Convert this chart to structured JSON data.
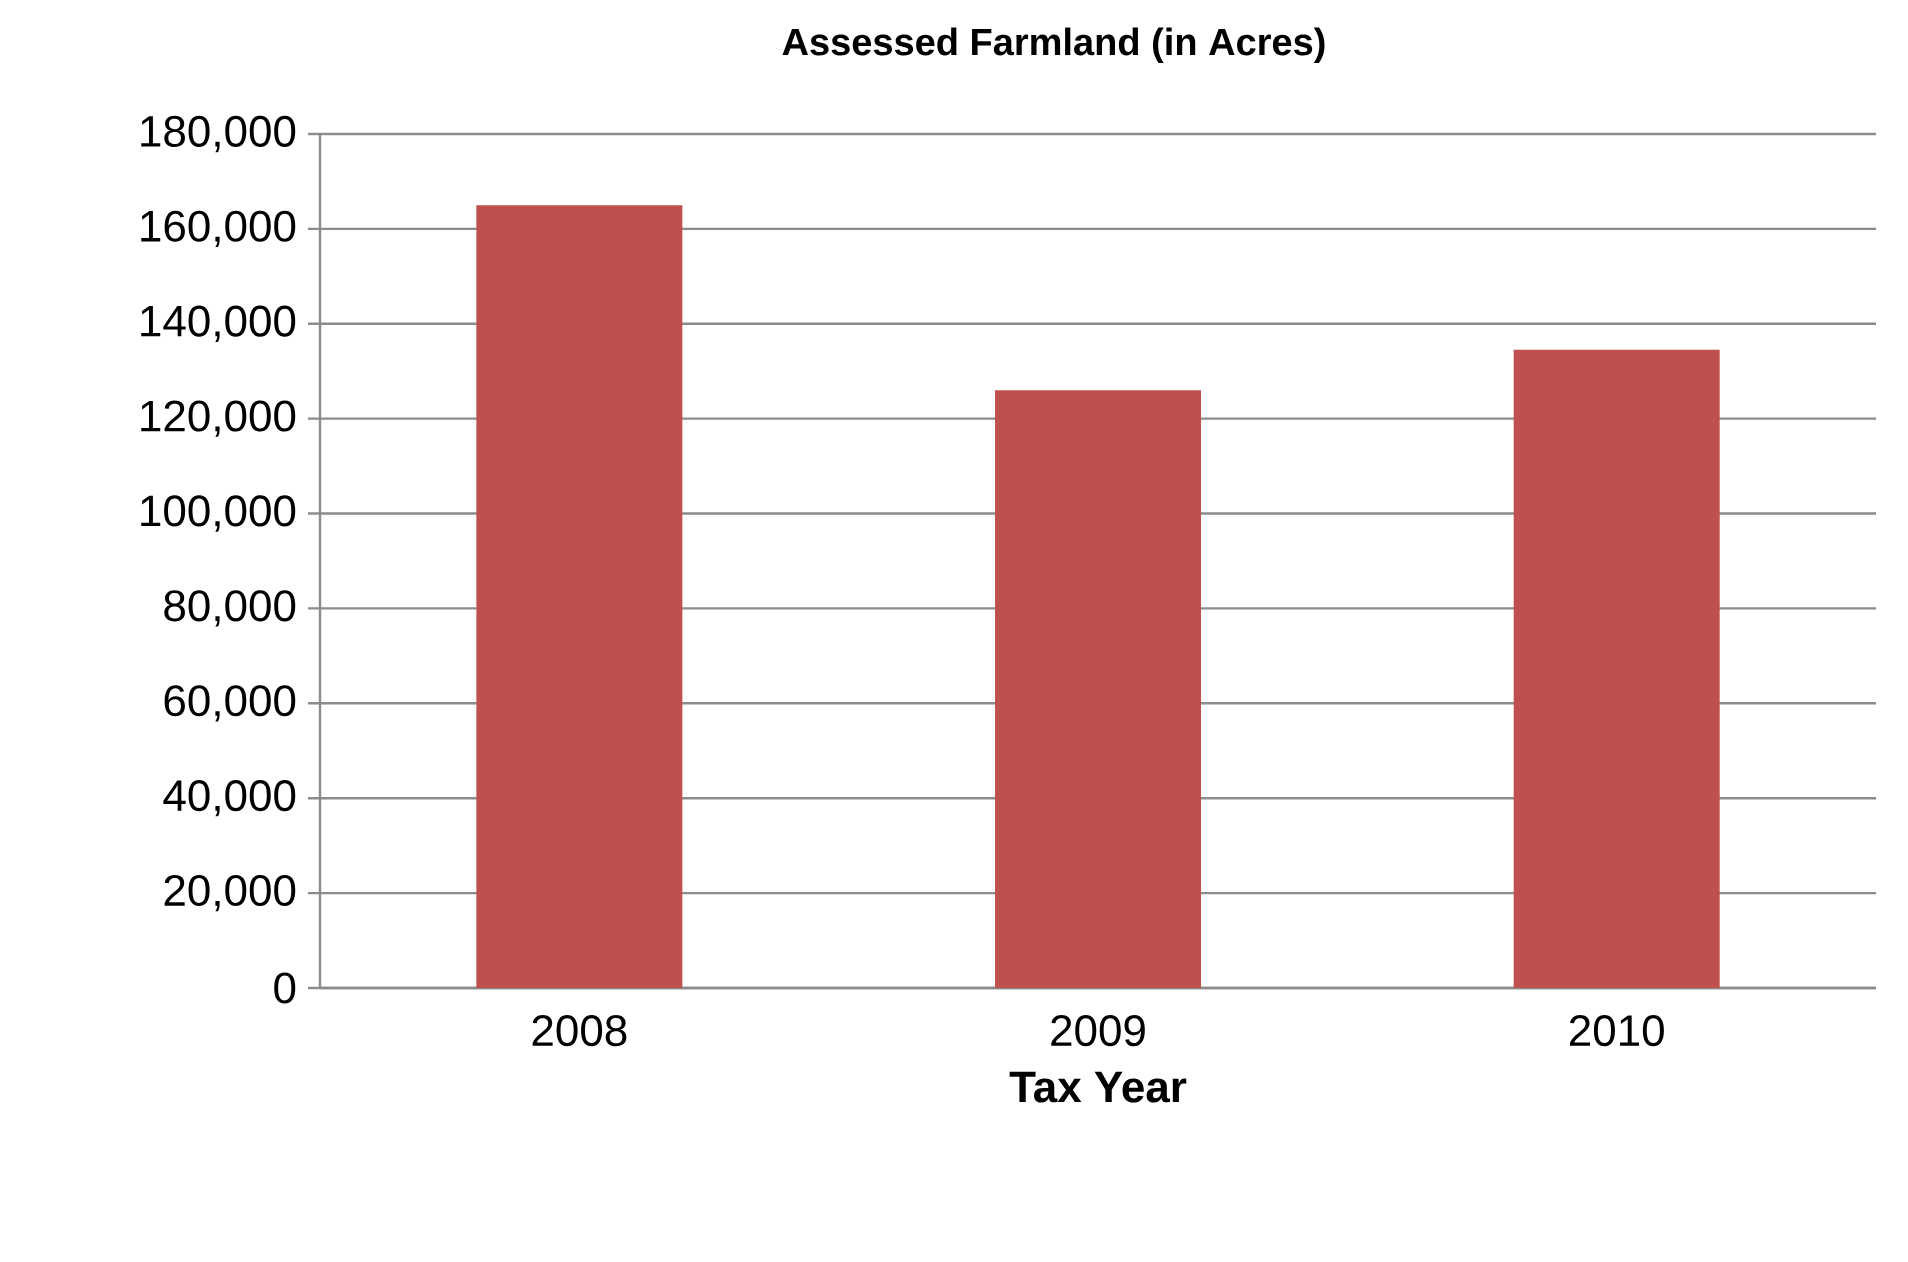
{
  "chart_data": {
    "type": "bar",
    "title": "Assessed Farmland (in Acres)",
    "xlabel": "Tax Year",
    "categories": [
      "2008",
      "2009",
      "2010"
    ],
    "values": [
      165000,
      126000,
      134500
    ],
    "color": "#c0504d",
    "ylim": [
      0,
      180000
    ],
    "yticks": [
      {
        "value": 0,
        "label": "0"
      },
      {
        "value": 20000,
        "label": "20,000"
      },
      {
        "value": 40000,
        "label": "40,000"
      },
      {
        "value": 60000,
        "label": "60,000"
      },
      {
        "value": 80000,
        "label": "80,000"
      },
      {
        "value": 100000,
        "label": "100,000"
      },
      {
        "value": 120000,
        "label": "120,000"
      },
      {
        "value": 140000,
        "label": "140,000"
      },
      {
        "value": 160000,
        "label": "160,000"
      },
      {
        "value": 180000,
        "label": "180,000"
      }
    ],
    "grid": "y"
  }
}
